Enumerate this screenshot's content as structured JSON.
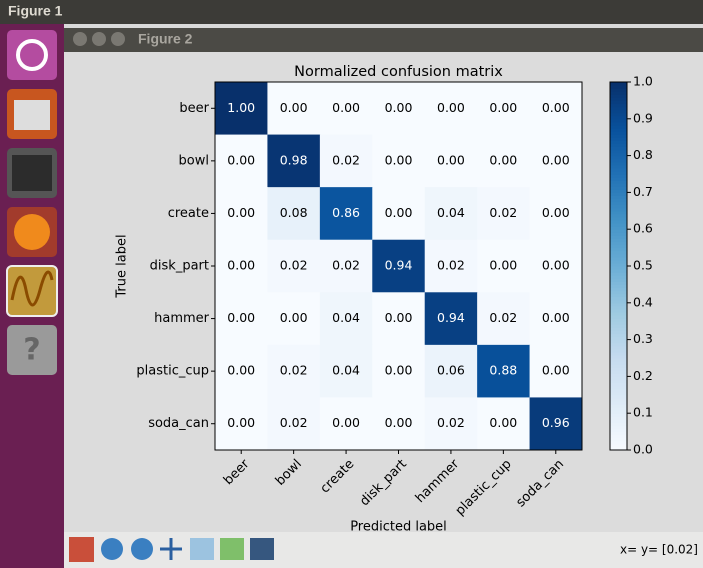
{
  "window": {
    "title": "Figure 1",
    "figure_title": "Figure 2",
    "status": "x= y= [0.02]"
  },
  "chart_data": {
    "type": "heatmap",
    "title": "Normalized confusion matrix",
    "x_label": "Predicted label",
    "y_label": "True label",
    "x_categories": [
      "beer",
      "bowl",
      "create",
      "disk_part",
      "hammer",
      "plastic_cup",
      "soda_can"
    ],
    "y_categories": [
      "beer",
      "bowl",
      "create",
      "disk_part",
      "hammer",
      "plastic_cup",
      "soda_can"
    ],
    "values": [
      [
        1,
        0,
        0,
        0,
        0,
        0,
        0
      ],
      [
        0,
        0.98,
        0.02,
        0,
        0,
        0,
        0
      ],
      [
        0,
        0.08,
        0.86,
        0,
        0.04,
        0.02,
        0
      ],
      [
        0,
        0.02,
        0.02,
        0.94,
        0.02,
        0,
        0
      ],
      [
        0,
        0,
        0.04,
        0,
        0.94,
        0.02,
        0
      ],
      [
        0,
        0.02,
        0.04,
        0,
        0.06,
        0.88,
        0
      ],
      [
        0,
        0.02,
        0,
        0,
        0.02,
        0,
        0.96
      ]
    ],
    "value_labels": [
      [
        "1.00",
        "0.00",
        "0.00",
        "0.00",
        "0.00",
        "0.00",
        "0.00"
      ],
      [
        "0.00",
        "0.98",
        "0.02",
        "0.00",
        "0.00",
        "0.00",
        "0.00"
      ],
      [
        "0.00",
        "0.08",
        "0.86",
        "0.00",
        "0.04",
        "0.02",
        "0.00"
      ],
      [
        "0.00",
        "0.02",
        "0.02",
        "0.94",
        "0.02",
        "0.00",
        "0.00"
      ],
      [
        "0.00",
        "0.00",
        "0.04",
        "0.00",
        "0.94",
        "0.02",
        "0.00"
      ],
      [
        "0.00",
        "0.02",
        "0.04",
        "0.00",
        "0.06",
        "0.88",
        "0.00"
      ],
      [
        "0.00",
        "0.02",
        "0.00",
        "0.00",
        "0.02",
        "0.00",
        "0.96"
      ]
    ],
    "colormap": "Blues",
    "clim": [
      0,
      1
    ],
    "cticks": [
      {
        "value": 0,
        "label": "0.0"
      },
      0.1,
      0.2,
      0.3,
      0.4,
      0.5,
      0.6,
      0.7,
      0.8,
      0.9,
      {
        "value": 1,
        "label": "1.0"
      }
    ]
  }
}
